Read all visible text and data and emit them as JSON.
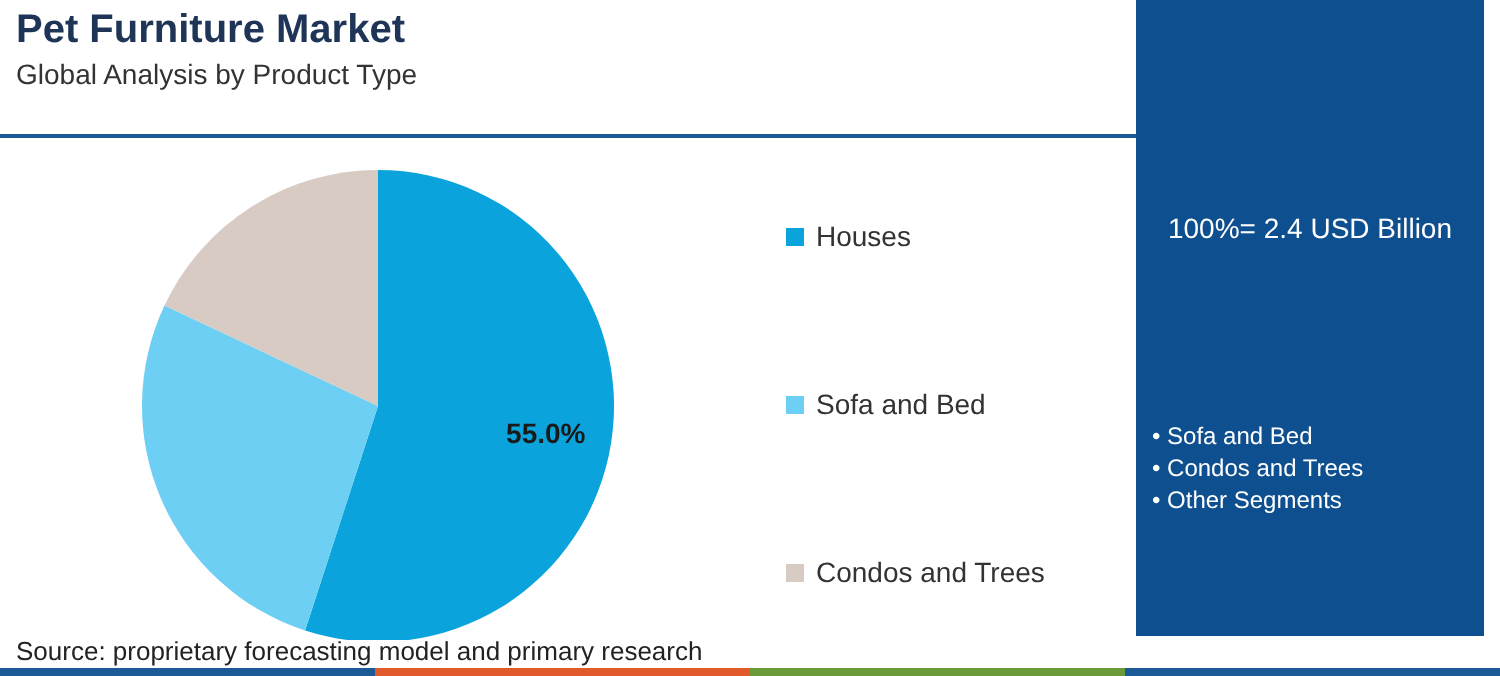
{
  "chart_data": {
    "type": "pie",
    "title": "Pet Furniture Market",
    "subtitle": "Global Analysis by Product Type",
    "categories": [
      "Houses",
      "Sofa and Bed",
      "Condos and Trees"
    ],
    "values": [
      55,
      27,
      18
    ],
    "colors": [
      "#0aa3dc",
      "#6dcff4",
      "#d8cbc3"
    ],
    "value_labels": [
      "55.0%",
      null,
      null
    ],
    "legend": "right",
    "annotations": [
      "100%= 2.4 USD Billion",
      "• Sofa and Bed",
      "• Condos and Trees",
      "• Other Segments",
      "Source: proprietary forecasting model and primary research"
    ]
  }
}
